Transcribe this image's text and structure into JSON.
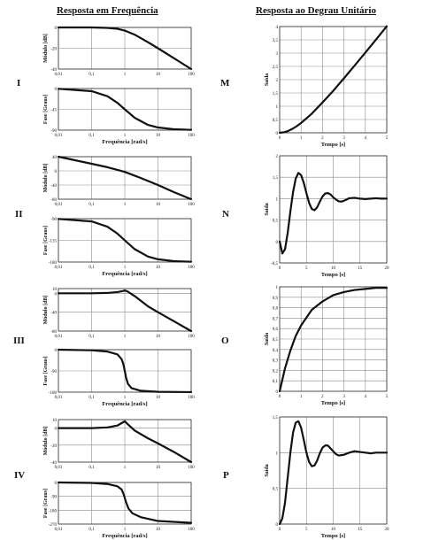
{
  "headers": {
    "left": "Resposta em Frequência",
    "right": "Resposta ao Degrau Unitário"
  },
  "row_labels": {
    "left": [
      "I",
      "II",
      "III",
      "IV"
    ],
    "right": [
      "M",
      "N",
      "O",
      "P"
    ]
  },
  "chart_data": [
    {
      "id": "I-mag",
      "type": "line",
      "xscale": "log",
      "x_ticks": [
        "0,01",
        "0,1",
        "1",
        "10",
        "100"
      ],
      "y_ticks": [
        "0",
        "-20",
        "-40"
      ],
      "ylabel": "Módulo [dB]",
      "xlabel": "",
      "xlim": [
        0.01,
        100
      ],
      "ylim": [
        -40,
        0
      ],
      "grid": true,
      "series": [
        {
          "x": [
            0.01,
            0.1,
            0.3,
            0.6,
            1,
            2,
            5,
            10,
            30,
            100
          ],
          "y": [
            0,
            0,
            -0.4,
            -1.3,
            -3,
            -7,
            -14.2,
            -20,
            -29.5,
            -40
          ]
        }
      ]
    },
    {
      "id": "I-phase",
      "type": "line",
      "xscale": "log",
      "x_ticks": [
        "0,01",
        "0,1",
        "1",
        "10",
        "100"
      ],
      "y_ticks": [
        "0",
        "-45",
        "-90"
      ],
      "ylabel": "Fase [Graus]",
      "xlabel": "Frequência [rad/s]",
      "xlim": [
        0.01,
        100
      ],
      "ylim": [
        -90,
        0
      ],
      "grid": true,
      "series": [
        {
          "x": [
            0.01,
            0.1,
            0.3,
            0.6,
            1,
            2,
            5,
            10,
            30,
            100
          ],
          "y": [
            -0.6,
            -5.7,
            -16.7,
            -31,
            -45,
            -63.4,
            -78.7,
            -84.3,
            -88.1,
            -89.4
          ]
        }
      ]
    },
    {
      "id": "II-mag",
      "type": "line",
      "xscale": "log",
      "x_ticks": [
        "0,01",
        "0,1",
        "1",
        "10",
        "100"
      ],
      "y_ticks": [
        "40",
        "0",
        "-40",
        "-80"
      ],
      "ylabel": "Módulo [dB]",
      "xlabel": "",
      "xlim": [
        0.01,
        100
      ],
      "ylim": [
        -80,
        40
      ],
      "grid": true,
      "series": [
        {
          "x": [
            0.01,
            0.1,
            0.3,
            1,
            3,
            10,
            30,
            100
          ],
          "y": [
            40,
            20,
            10.3,
            -3,
            -20,
            -40,
            -60,
            -80
          ]
        }
      ]
    },
    {
      "id": "II-phase",
      "type": "line",
      "xscale": "log",
      "x_ticks": [
        "0,01",
        "0,1",
        "1",
        "10",
        "100"
      ],
      "y_ticks": [
        "-90",
        "-135",
        "-180"
      ],
      "ylabel": "Fase [Graus]",
      "xlabel": "Frequência [rad/s]",
      "xlim": [
        0.01,
        100
      ],
      "ylim": [
        -180,
        -90
      ],
      "grid": true,
      "series": [
        {
          "x": [
            0.01,
            0.1,
            0.3,
            0.6,
            1,
            2,
            5,
            10,
            30,
            100
          ],
          "y": [
            -90.6,
            -95.7,
            -106.7,
            -121,
            -135,
            -153.4,
            -168.7,
            -174.3,
            -178.1,
            -179.4
          ]
        }
      ]
    },
    {
      "id": "III-mag",
      "type": "line",
      "xscale": "log",
      "x_ticks": [
        "0,01",
        "0,1",
        "1",
        "10",
        "100"
      ],
      "y_ticks": [
        "10",
        "0",
        "-40",
        "-80"
      ],
      "ylabel": "Módulo [dB]",
      "xlabel": "",
      "xlim": [
        0.01,
        100
      ],
      "ylim": [
        -80,
        10
      ],
      "grid": true,
      "series": [
        {
          "x": [
            0.01,
            0.1,
            0.3,
            0.6,
            0.9,
            1,
            1.2,
            2,
            5,
            10,
            30,
            100
          ],
          "y": [
            0,
            0,
            0.8,
            2.6,
            5,
            6,
            4,
            -6,
            -27.6,
            -40,
            -59,
            -80
          ]
        }
      ]
    },
    {
      "id": "III-phase",
      "type": "line",
      "xscale": "log",
      "x_ticks": [
        "0,01",
        "0,1",
        "1",
        "10",
        "100"
      ],
      "y_ticks": [
        "0",
        "-90",
        "-180"
      ],
      "ylabel": "Fase [Graus]",
      "xlabel": "Frequência [rad/s]",
      "xlim": [
        0.01,
        100
      ],
      "ylim": [
        -180,
        0
      ],
      "grid": true,
      "series": [
        {
          "x": [
            0.01,
            0.1,
            0.3,
            0.6,
            0.8,
            0.9,
            1,
            1.1,
            1.25,
            1.6,
            3,
            10,
            100
          ],
          "y": [
            0,
            -2.5,
            -8,
            -20,
            -40,
            -60,
            -90,
            -120,
            -145,
            -163,
            -174,
            -178.5,
            -179.8
          ]
        }
      ]
    },
    {
      "id": "IV-mag",
      "type": "line",
      "xscale": "log",
      "x_ticks": [
        "0,01",
        "0,1",
        "1",
        "10",
        "100"
      ],
      "y_ticks": [
        "10",
        "0",
        "-20",
        "-40"
      ],
      "ylabel": "Módulo [dB]",
      "xlabel": "",
      "xlim": [
        0.01,
        100
      ],
      "ylim": [
        -40,
        10
      ],
      "grid": true,
      "series": [
        {
          "x": [
            0.01,
            0.1,
            0.3,
            0.6,
            0.9,
            1,
            1.2,
            2,
            5,
            10,
            30,
            100
          ],
          "y": [
            0,
            0,
            0.8,
            3,
            7,
            8,
            5,
            -3,
            -12,
            -18,
            -28,
            -40
          ]
        }
      ]
    },
    {
      "id": "IV-phase",
      "type": "line",
      "xscale": "log",
      "x_ticks": [
        "0,01",
        "0,1",
        "1",
        "10",
        "100"
      ],
      "y_ticks": [
        "0",
        "-90",
        "-180",
        "-270"
      ],
      "ylabel": "Fase [Graus]",
      "xlabel": "Frequência [rad/s]",
      "xlim": [
        0.01,
        100
      ],
      "ylim": [
        -270,
        0
      ],
      "grid": true,
      "series": [
        {
          "x": [
            0.01,
            0.1,
            0.3,
            0.6,
            0.8,
            0.9,
            1,
            1.1,
            1.3,
            1.7,
            3,
            10,
            100
          ],
          "y": [
            0,
            -3,
            -10,
            -25,
            -45,
            -70,
            -100,
            -130,
            -170,
            -200,
            -225,
            -250,
            -262
          ]
        }
      ]
    },
    {
      "id": "M",
      "type": "line",
      "x_ticks": [
        "0",
        "1",
        "2",
        "3",
        "4",
        "5"
      ],
      "y_ticks": [
        "0",
        "0,5",
        "1",
        "1,5",
        "2",
        "2,5",
        "3",
        "3,5",
        "4"
      ],
      "ylabel": "Saída",
      "xlabel": "Tempo [s]",
      "xlim": [
        0,
        5
      ],
      "ylim": [
        0,
        4
      ],
      "grid": true,
      "series": [
        {
          "x": [
            0,
            0.2,
            0.4,
            0.6,
            0.8,
            1,
            1.5,
            2,
            2.5,
            3,
            3.5,
            4,
            4.5,
            5
          ],
          "y": [
            0,
            0.02,
            0.07,
            0.15,
            0.25,
            0.37,
            0.72,
            1.14,
            1.58,
            2.05,
            2.53,
            3.02,
            3.51,
            4.01
          ]
        }
      ]
    },
    {
      "id": "N",
      "type": "line",
      "x_ticks": [
        "0",
        "5",
        "10",
        "15",
        "20"
      ],
      "y_ticks": [
        "-0,5",
        "0",
        "0,5",
        "1",
        "1,5",
        "2"
      ],
      "ylabel": "Saída",
      "xlabel": "Tempo [s]",
      "xlim": [
        0,
        20
      ],
      "ylim": [
        -0.5,
        2
      ],
      "grid": true,
      "series": [
        {
          "x": [
            0,
            0.5,
            1,
            1.5,
            2,
            2.5,
            3,
            3.5,
            4,
            4.5,
            5,
            5.5,
            6,
            6.5,
            7,
            7.5,
            8,
            8.5,
            9,
            9.5,
            10,
            10.5,
            11,
            11.5,
            12,
            12.5,
            13,
            14,
            15,
            16,
            17,
            18,
            19,
            20
          ],
          "y": [
            0,
            -0.28,
            -0.18,
            0.2,
            0.7,
            1.15,
            1.47,
            1.6,
            1.55,
            1.37,
            1.13,
            0.9,
            0.76,
            0.73,
            0.8,
            0.93,
            1.05,
            1.12,
            1.13,
            1.1,
            1.03,
            0.98,
            0.94,
            0.93,
            0.95,
            0.98,
            1.01,
            1.02,
            1,
            0.99,
            1,
            1.01,
            1,
            1
          ]
        }
      ]
    },
    {
      "id": "O",
      "type": "line",
      "x_ticks": [
        "0",
        "1",
        "2",
        "3",
        "4",
        "5"
      ],
      "y_ticks": [
        "0",
        "0,1",
        "0,2",
        "0,3",
        "0,4",
        "0,5",
        "0,6",
        "0,7",
        "0,8",
        "0,9",
        "1"
      ],
      "ylabel": "Saída",
      "xlabel": "Tempo [s]",
      "xlim": [
        0,
        5
      ],
      "ylim": [
        0,
        1
      ],
      "grid": true,
      "series": [
        {
          "x": [
            0,
            0.25,
            0.5,
            0.75,
            1,
            1.5,
            2,
            2.5,
            3,
            3.5,
            4,
            4.5,
            5
          ],
          "y": [
            0,
            0.22,
            0.39,
            0.53,
            0.63,
            0.78,
            0.86,
            0.92,
            0.95,
            0.97,
            0.98,
            0.99,
            0.99
          ]
        }
      ]
    },
    {
      "id": "P",
      "type": "line",
      "x_ticks": [
        "0",
        "5",
        "10",
        "15",
        "20"
      ],
      "y_ticks": [
        "0",
        "0,5",
        "1",
        "1,5"
      ],
      "ylabel": "Saída",
      "xlabel": "Tempo [s]",
      "xlim": [
        0,
        20
      ],
      "ylim": [
        0,
        1.5
      ],
      "grid": true,
      "series": [
        {
          "x": [
            0,
            0.5,
            1,
            1.5,
            2,
            2.5,
            3,
            3.5,
            4,
            4.5,
            5,
            5.5,
            6,
            6.5,
            7,
            7.5,
            8,
            8.5,
            9,
            9.5,
            10,
            10.5,
            11,
            12,
            13,
            14,
            15,
            16,
            17,
            18,
            19,
            20
          ],
          "y": [
            0,
            0.08,
            0.3,
            0.65,
            1.0,
            1.28,
            1.42,
            1.44,
            1.35,
            1.18,
            1.0,
            0.87,
            0.81,
            0.82,
            0.89,
            0.99,
            1.07,
            1.1,
            1.1,
            1.06,
            1.02,
            0.98,
            0.96,
            0.97,
            1.0,
            1.02,
            1.01,
            1.0,
            0.99,
            1.0,
            1.0,
            1.0
          ]
        }
      ]
    }
  ]
}
